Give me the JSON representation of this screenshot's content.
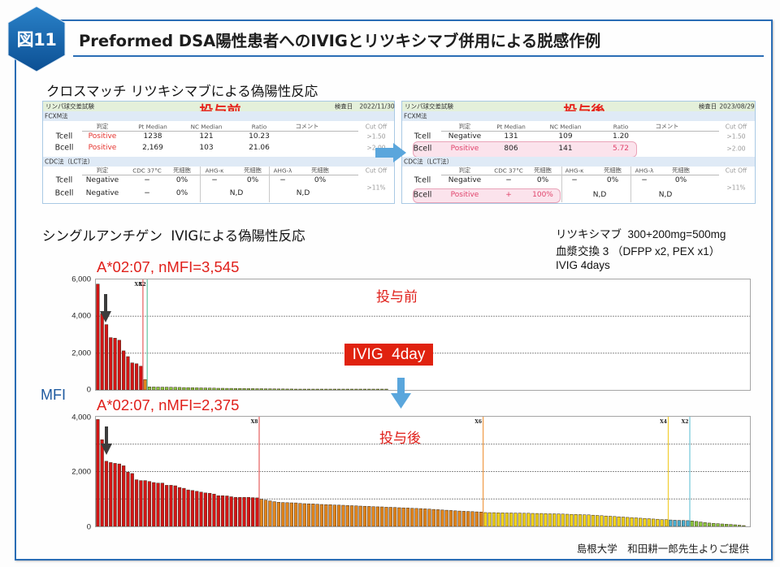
{
  "figure": {
    "badge": "図11",
    "title": "Preformed DSA陽性患者へのIVIGとリツキシマブ併用による脱感作例",
    "footer": "島根大学　和田耕一郎先生よりご提供"
  },
  "colors": {
    "frame": "#2a6db5",
    "accent_red": "#e0201b",
    "mfi_label": "#1e5aa0",
    "arrow_blue": "#5aa6dc",
    "highlight_pink": "#fbe3ec"
  },
  "crossmatch": {
    "title": "クロスマッチ リツキシマブによる偽陽性反応",
    "tables": [
      {
        "test_name": "リンパ球交差試験",
        "stage": "投与前",
        "date_label": "検査日",
        "date": "2022/11/30",
        "fcxm": {
          "section": "FCXM法",
          "headers": [
            "判定",
            "Pt Median",
            "NC Median",
            "Ratio",
            "コメント",
            "Cut Off"
          ],
          "rows": [
            {
              "cell": "Tcell",
              "judge": "Positive",
              "pt": "1238",
              "nc": "121",
              "ratio": "10.23",
              "comment": "",
              "cutoff": ">1.50"
            },
            {
              "cell": "Bcell",
              "judge": "Positive",
              "pt": "2,169",
              "nc": "103",
              "ratio": "21.06",
              "comment": "",
              "cutoff": ">2.00"
            }
          ]
        },
        "cdc": {
          "section": "CDC法（LCT法）",
          "headers": [
            "判定",
            "CDC 37°C",
            "死細胞",
            "AHG-κ",
            "死細胞",
            "AHG-λ",
            "死細胞",
            "Cut Off"
          ],
          "rows": [
            {
              "cell": "Tcell",
              "judge": "Negative",
              "cdc37": "−",
              "dead1": "0%",
              "ahgk": "−",
              "dead2": "0%",
              "ahgl": "−",
              "dead3": "0%"
            },
            {
              "cell": "Bcell",
              "judge": "Negative",
              "cdc37": "−",
              "dead1": "0%",
              "ahgk_nd": "N,D",
              "ahgl_nd": "N,D"
            }
          ],
          "cutoff": ">11%"
        }
      },
      {
        "test_name": "リンパ球交差試験",
        "stage": "投与後",
        "date_label": "検査日",
        "date": "2023/08/29",
        "fcxm": {
          "section": "FCXM法",
          "headers": [
            "判定",
            "Pt Median",
            "NC Median",
            "Ratio",
            "コメント",
            "Cut Off"
          ],
          "rows": [
            {
              "cell": "Tcell",
              "judge": "Negative",
              "pt": "131",
              "nc": "109",
              "ratio": "1.20",
              "comment": "",
              "cutoff": ">1.50"
            },
            {
              "cell": "Bcell",
              "judge": "Positive",
              "pt": "806",
              "nc": "141",
              "ratio": "5.72",
              "comment": "",
              "cutoff": ">2.00"
            }
          ]
        },
        "cdc": {
          "section": "CDC法（LCT法）",
          "headers": [
            "判定",
            "CDC 37°C",
            "死細胞",
            "AHG-κ",
            "死細胞",
            "AHG-λ",
            "死細胞",
            "Cut Off"
          ],
          "rows": [
            {
              "cell": "Tcell",
              "judge": "Negative",
              "cdc37": "−",
              "dead1": "0%",
              "ahgk": "−",
              "dead2": "0%",
              "ahgl": "−",
              "dead3": "0%"
            },
            {
              "cell": "Bcell",
              "judge": "Positive",
              "cdc37": "+",
              "dead1": "100%",
              "ahgk_nd": "N,D",
              "ahgl_nd": "N,D"
            }
          ],
          "cutoff": ">11%"
        }
      }
    ]
  },
  "single_antigen": {
    "title": "シングルアンチゲン  IVIGによる偽陽性反応",
    "treatment_notes": [
      "リツキシマブ  300+200mg=500mg",
      "血漿交換 3 （DFPP x2, PEX x1）",
      "IVIG 4days"
    ],
    "ivig_label": "IVIG  4day",
    "y_label": "MFI"
  },
  "chart_data": [
    {
      "type": "bar",
      "title": "投与前",
      "annotation": "A*02:07, nMFI=3,545",
      "ylabel": "MFI",
      "xlabel": "",
      "ylim": [
        0,
        6000
      ],
      "yticks": [
        0,
        2000,
        4000,
        6000
      ],
      "ytick_labels": [
        "0",
        "2,000",
        "4,000",
        "6,000"
      ],
      "grid": [
        2000,
        4000
      ],
      "highlight_index": 2,
      "series": [
        {
          "name": "red",
          "color": "#d41414",
          "values": [
            5750,
            4150,
            3545,
            2840,
            2810,
            2700,
            2120,
            1810,
            1470,
            1420,
            1290
          ]
        },
        {
          "name": "orange",
          "color": "#e3861c",
          "values": [
            560
          ]
        },
        {
          "name": "green",
          "color": "#8cc63f",
          "values": [
            165,
            160,
            155,
            150,
            148,
            145,
            140,
            135,
            130,
            125,
            120,
            115,
            110,
            105,
            100,
            95,
            90,
            88,
            85,
            82,
            80,
            78,
            75,
            72,
            70,
            68,
            65,
            62,
            60,
            58,
            55,
            52,
            50,
            48,
            46,
            44,
            42,
            40,
            38,
            36,
            34,
            32,
            30,
            28,
            26,
            24,
            22,
            20,
            19,
            18,
            17,
            16,
            15,
            14,
            13,
            12
          ]
        }
      ],
      "markers": [
        {
          "label": "X8",
          "color": "#e86a6a",
          "before_series": 1
        },
        {
          "label": "X2",
          "color": "#6fcaa8",
          "before_series": 2
        }
      ]
    },
    {
      "type": "bar",
      "title": "投与後",
      "annotation": "A*02:07, nMFI=2,375",
      "ylabel": "MFI",
      "xlabel": "",
      "ylim": [
        0,
        4000
      ],
      "yticks": [
        0,
        2000,
        4000
      ],
      "ytick_labels": [
        "0",
        "2,000",
        "4,000"
      ],
      "grid": [
        1000,
        2000,
        3000
      ],
      "highlight_index": 2,
      "series": [
        {
          "name": "red",
          "color": "#d41414",
          "values": [
            3900,
            3160,
            2375,
            2330,
            2300,
            2280,
            2210,
            1980,
            1930,
            1700,
            1670,
            1670,
            1640,
            1600,
            1580,
            1580,
            1500,
            1500,
            1480,
            1420,
            1390,
            1330,
            1310,
            1280,
            1250,
            1220,
            1210,
            1180,
            1120,
            1120,
            1110,
            1080,
            1060,
            1060,
            1060,
            1060,
            1050,
            1040
          ]
        },
        {
          "name": "orange",
          "color": "#e3861c",
          "values": [
            990,
            960,
            930,
            900,
            880,
            870,
            865,
            860,
            855,
            840,
            830,
            825,
            820,
            810,
            800,
            795,
            790,
            780,
            775,
            770,
            760,
            755,
            750,
            740,
            735,
            730,
            720,
            715,
            710,
            700,
            695,
            690,
            680,
            675,
            670,
            660,
            655,
            650,
            640,
            630,
            620,
            610,
            600,
            590,
            580,
            570,
            560,
            550,
            545,
            540,
            530,
            525
          ]
        },
        {
          "name": "yellow",
          "color": "#f2d31a",
          "values": [
            505,
            500,
            500,
            495,
            495,
            490,
            490,
            485,
            485,
            480,
            480,
            475,
            470,
            470,
            465,
            460,
            460,
            455,
            450,
            445,
            440,
            435,
            430,
            425,
            420,
            410,
            400,
            390,
            380,
            370,
            360,
            350,
            340,
            330,
            320,
            310,
            300,
            290,
            280,
            270,
            260,
            250,
            245
          ]
        },
        {
          "name": "cyan",
          "color": "#4aaed0",
          "values": [
            235,
            225,
            220,
            215,
            210
          ]
        },
        {
          "name": "green",
          "color": "#8cc63f",
          "values": [
            200,
            180,
            160,
            140,
            120,
            110,
            100,
            90,
            80,
            70,
            60,
            45,
            25
          ]
        }
      ],
      "markers": [
        {
          "label": "X8",
          "color": "#e86a6a",
          "before_series": 1
        },
        {
          "label": "X6",
          "color": "#f0a050",
          "before_series": 2
        },
        {
          "label": "X4",
          "color": "#f2cf3a",
          "before_series": 3
        },
        {
          "label": "X2",
          "color": "#7ccbdc",
          "before_series": 4
        }
      ]
    }
  ]
}
